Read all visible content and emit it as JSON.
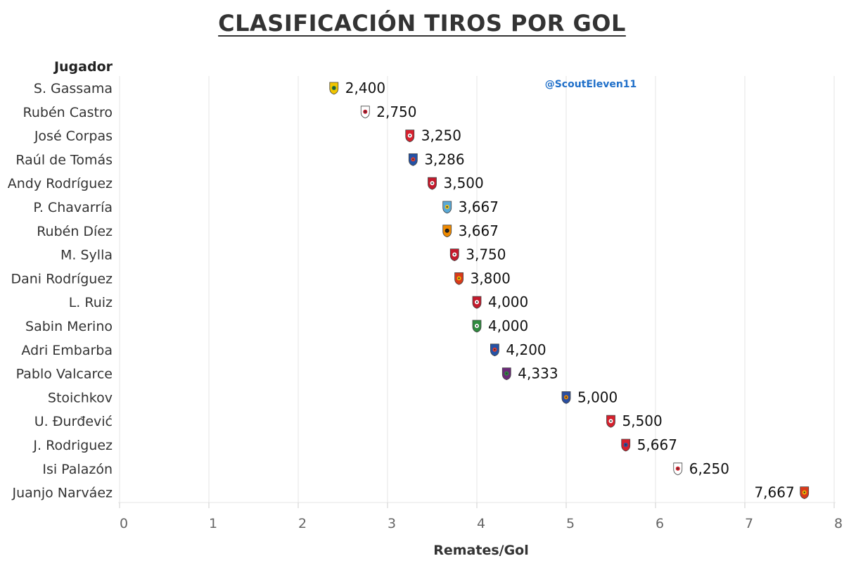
{
  "title": "CLASIFICACIÓN TIROS POR GOL",
  "watermark": "@ScoutEleven11",
  "colors": {
    "grid": "#eeeeee",
    "text": "#333333",
    "watermark": "#1f6fc9"
  },
  "chart_data": {
    "type": "scatter",
    "title": "CLASIFICACIÓN TIROS POR GOL",
    "row_header": "Jugador",
    "xlabel": "Remates/Gol",
    "xlim": [
      0,
      8
    ],
    "xticks": [
      0,
      1,
      2,
      3,
      4,
      5,
      6,
      7,
      8
    ],
    "grid": true,
    "points": [
      {
        "player": "S. Gassama",
        "value": 2.4,
        "label": "2,400",
        "crest": "yellow-green"
      },
      {
        "player": "Rubén Castro",
        "value": 2.75,
        "label": "2,750",
        "crest": "white-red"
      },
      {
        "player": "José Corpas",
        "value": 3.25,
        "label": "3,250",
        "crest": "red-white-stripes"
      },
      {
        "player": "Raúl de Tomás",
        "value": 3.286,
        "label": "3,286",
        "crest": "blue-white"
      },
      {
        "player": "Andy Rodríguez",
        "value": 3.5,
        "label": "3,500",
        "crest": "red-white"
      },
      {
        "player": "P. Chavarría",
        "value": 3.667,
        "label": "3,667",
        "crest": "sky-blue-white"
      },
      {
        "player": "Rubén Díez",
        "value": 3.667,
        "label": "3,667",
        "crest": "orange-black"
      },
      {
        "player": "M. Sylla",
        "value": 3.75,
        "label": "3,750",
        "crest": "red-white"
      },
      {
        "player": "Dani Rodríguez",
        "value": 3.8,
        "label": "3,800",
        "crest": "red-yellow"
      },
      {
        "player": "L. Ruiz",
        "value": 4.0,
        "label": "4,000",
        "crest": "red-white"
      },
      {
        "player": "Sabin Merino",
        "value": 4.0,
        "label": "4,000",
        "crest": "green-white"
      },
      {
        "player": "Adri Embarba",
        "value": 4.2,
        "label": "4,200",
        "crest": "blue-white"
      },
      {
        "player": "Pablo Valcarce",
        "value": 4.333,
        "label": "4,333",
        "crest": "purple-green"
      },
      {
        "player": "Stoichkov",
        "value": 5.0,
        "label": "5,000",
        "crest": "blue-orange"
      },
      {
        "player": "U. Đurđević",
        "value": 5.5,
        "label": "5,500",
        "crest": "red-white-stripes"
      },
      {
        "player": "J. Rodriguez",
        "value": 5.667,
        "label": "5,667",
        "crest": "red-blue-white"
      },
      {
        "player": "Isi Palazón",
        "value": 6.25,
        "label": "6,250",
        "crest": "red-sash"
      },
      {
        "player": "Juanjo Narváez",
        "value": 7.667,
        "label": "7,667",
        "crest": "red-yellow"
      }
    ]
  }
}
